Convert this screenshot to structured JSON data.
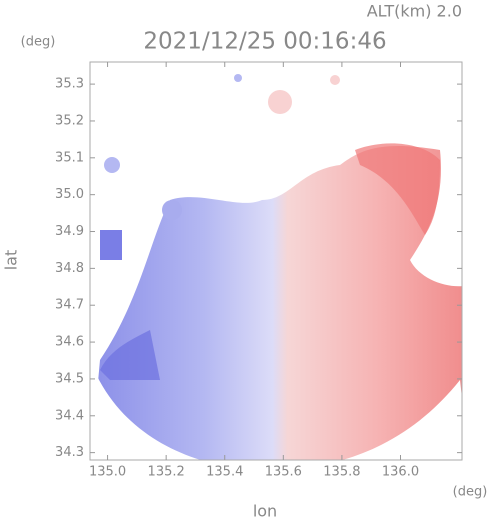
{
  "header": {
    "altitude": "ALT(km) 2.0",
    "title": "2021/12/25 00:16:46"
  },
  "axes": {
    "y_unit": "(deg)",
    "x_unit": "(deg)",
    "y_label": "lat",
    "x_label": "lon",
    "xlim": [
      134.94,
      136.21
    ],
    "ylim": [
      34.28,
      35.36
    ],
    "xticks": [
      {
        "value": 135.0,
        "label": "135.0"
      },
      135.2,
      135.4,
      135.6,
      135.8,
      {
        "value": 136.0,
        "label": "136.0"
      }
    ],
    "yticks": [
      35.3,
      35.2,
      35.1,
      {
        "value": 35.0,
        "label": "35.0"
      },
      34.9,
      34.8,
      34.7,
      34.6,
      34.5,
      34.4,
      34.3
    ]
  }
}
